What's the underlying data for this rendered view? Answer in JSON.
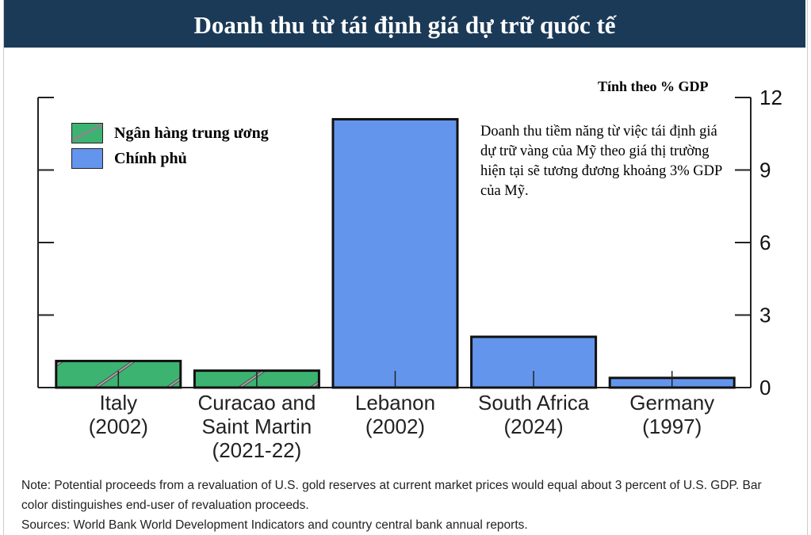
{
  "title": "Doanh thu từ tái định giá dự trữ quốc tế",
  "legend": [
    {
      "label": "Ngân hàng trung ương",
      "color": "#3cb371"
    },
    {
      "label": "Chính phủ",
      "color": "#6495ed"
    }
  ],
  "annotation": "Doanh thu tiềm năng từ việc tái định giá dự trữ vàng của Mỹ theo giá thị trường hiện tại sẽ tương đương khoảng 3% GDP của Mỹ.",
  "notes": {
    "note": "Note: Potential proceeds from a revaluation of U.S. gold reserves at current market prices would equal about 3 percent of U.S. GDP. Bar color distinguishes end-user of revaluation proceeds.",
    "sources": "Sources: World Bank World Development Indicators and country central bank annual reports."
  },
  "chart_data": {
    "type": "bar",
    "title": "Doanh thu từ tái định giá dự trữ quốc tế",
    "ylabel": "Tính theo % GDP",
    "ylim": [
      0,
      12
    ],
    "yticks": [
      0,
      3,
      6,
      9,
      12
    ],
    "categories": [
      [
        "Italy",
        "(2002)"
      ],
      [
        "Curacao and",
        "Saint Martin",
        "(2021-22)"
      ],
      [
        "Lebanon",
        "(2002)"
      ],
      [
        "South Africa",
        "(2024)"
      ],
      [
        "Germany",
        "(1997)"
      ]
    ],
    "values": [
      1.1,
      0.7,
      11.1,
      2.1,
      0.4
    ],
    "end_user": [
      "Ngân hàng trung ương",
      "Ngân hàng trung ương",
      "Chính phủ",
      "Chính phủ",
      "Chính phủ"
    ],
    "colors": {
      "Ngân hàng trung ương": "#3cb371",
      "Chính phủ": "#6495ed"
    }
  }
}
